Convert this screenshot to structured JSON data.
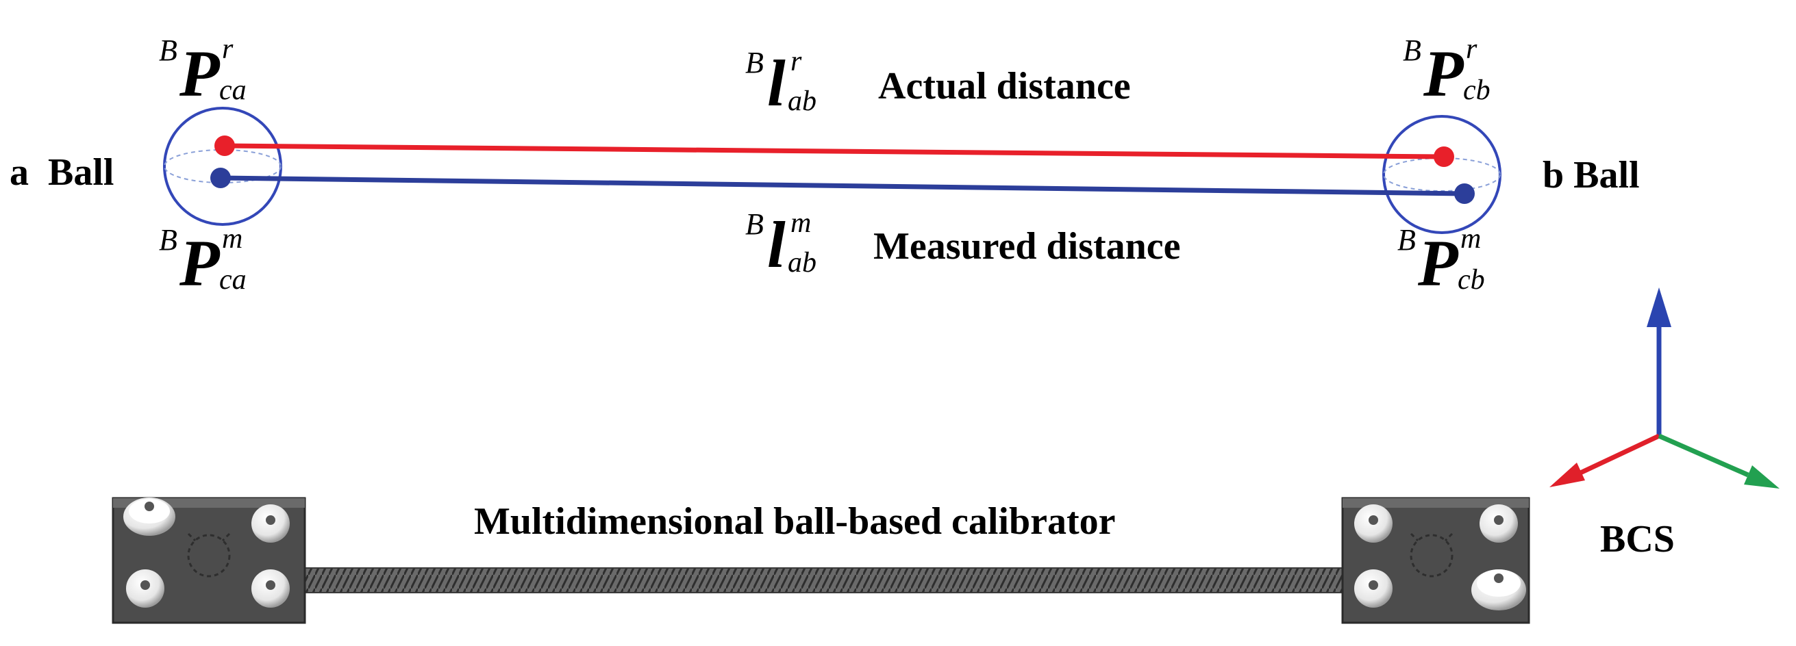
{
  "labels": {
    "ball_a": "a  Ball",
    "ball_b": "b Ball",
    "actual": "Actual distance",
    "measured": "Measured distance",
    "calibrator": "Multidimensional ball-based calibrator",
    "frame": "BCS"
  },
  "symbols": {
    "p_ca_r": {
      "pre": "B",
      "base": "P",
      "sup": "r",
      "sub": "ca"
    },
    "p_ca_m": {
      "pre": "B",
      "base": "P",
      "sup": "m",
      "sub": "ca"
    },
    "p_cb_r": {
      "pre": "B",
      "base": "P",
      "sup": "r",
      "sub": "cb"
    },
    "p_cb_m": {
      "pre": "B",
      "base": "P",
      "sup": "m",
      "sub": "cb"
    },
    "l_ab_r": {
      "pre": "B",
      "base": "l",
      "sup": "r",
      "sub": "ab"
    },
    "l_ab_m": {
      "pre": "B",
      "base": "l",
      "sup": "m",
      "sub": "ab"
    }
  },
  "colors": {
    "actual": "#e8202a",
    "measured": "#2c3e9a",
    "ball_outline": "#3347b8",
    "axis_up": "#2a44b0",
    "axis_left": "#e0202a",
    "axis_right": "#22a050",
    "plate": "#4a4a4a",
    "bolt": "#f2f2f2",
    "rod": "#5a5a5a"
  }
}
